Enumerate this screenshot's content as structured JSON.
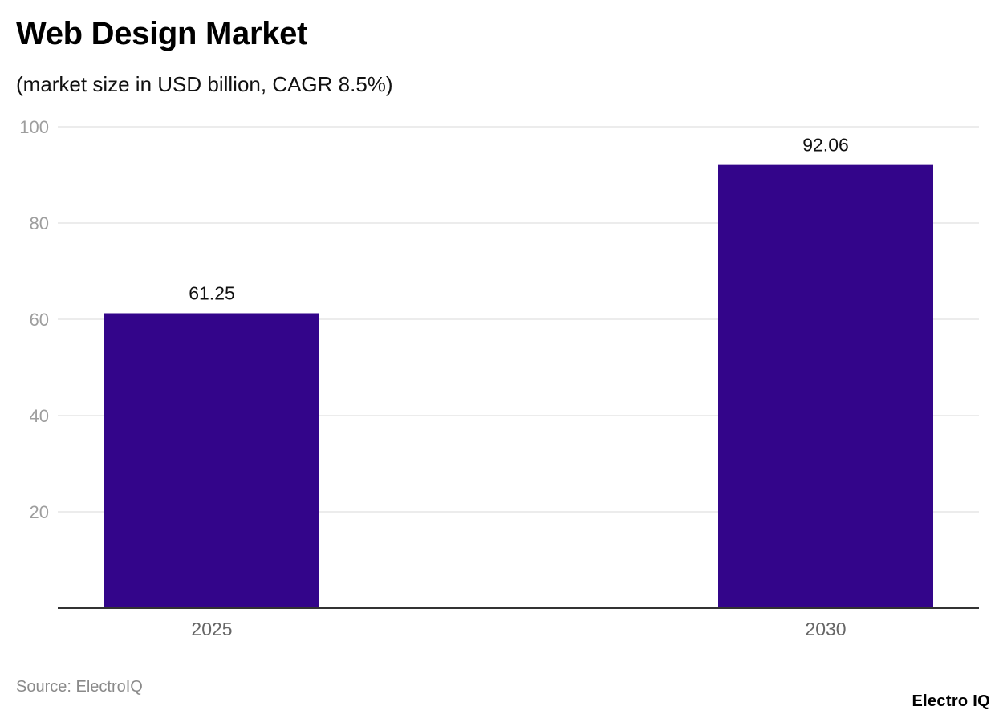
{
  "header": {
    "title": "Web Design Market",
    "subtitle": "(market size in USD billion, CAGR 8.5%)"
  },
  "footer": {
    "source": "Source: ElectroIQ",
    "brand": "Electro IQ"
  },
  "chart_data": {
    "type": "bar",
    "categories": [
      "2025",
      "2030"
    ],
    "values": [
      61.25,
      92.06
    ],
    "value_labels": [
      "61.25",
      "92.06"
    ],
    "yticks": [
      "20",
      "40",
      "60",
      "80",
      "100"
    ],
    "ylim": [
      0,
      100
    ],
    "grid": true,
    "legend": "none",
    "title": "Web Design Market",
    "subtitle": "(market size in USD billion, CAGR 8.5%)",
    "colors": {
      "bar": "#33058a",
      "grid": "#e6e6e6",
      "axis": "#333333",
      "tick_label": "#9e9e9e",
      "category_label": "#666666",
      "value_label": "#111111"
    }
  }
}
